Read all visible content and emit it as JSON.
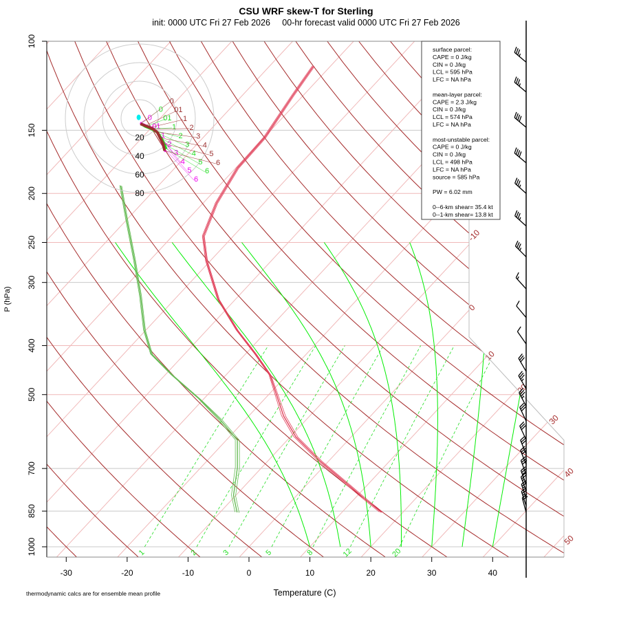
{
  "chart_data": {
    "type": "line",
    "subtype": "skew-T log-P",
    "title": "CSU WRF skew-T for Sterling",
    "subtitle": "init: 0000 UTC Fri 27 Feb 2026     00-hr forecast valid 0000 UTC Fri 27 Feb 2026",
    "xlabel": "Temperature (C)",
    "ylabel": "P (hPa)",
    "footnote": "thermodynamic calcs are for ensemble mean profile",
    "y_scale": "log",
    "ylim": [
      1000,
      100
    ],
    "xlim_at_1000hPa": [
      -33,
      52
    ],
    "x_ticks": [
      "-30",
      "-20",
      "-10",
      "0",
      "10",
      "20",
      "30",
      "40"
    ],
    "x_tick_values": [
      -30,
      -20,
      -10,
      0,
      10,
      20,
      30,
      40
    ],
    "y_ticks": [
      "100",
      "150",
      "200",
      "250",
      "300",
      "400",
      "500",
      "700",
      "850",
      "1000"
    ],
    "y_tick_values": [
      100,
      150,
      200,
      250,
      300,
      400,
      500,
      700,
      850,
      1000
    ],
    "isotherm_labels": [
      "-10",
      "0",
      "10",
      "20",
      "30",
      "40",
      "50"
    ],
    "isotherm_label_values": [
      -10,
      0,
      10,
      20,
      30,
      40,
      50
    ],
    "mixing_ratio_labels": [
      "1",
      "2",
      "3",
      "5",
      "8",
      "12",
      "20"
    ],
    "mixing_ratio_values": [
      1,
      2,
      3,
      5,
      8,
      12,
      20
    ],
    "moist_adiabat_start_temps_1000hPa": [
      10,
      15,
      20,
      25,
      30,
      35,
      40
    ],
    "colors": {
      "temperature": "#e0405a",
      "dewpoint": "#66bb55",
      "dry_adiabat": "#a52a2a",
      "isotherm": "#f0b8b8",
      "moist_adiabat": "#00ee00",
      "mixing_ratio": "#22dd22",
      "isobar": "#c8c8c8",
      "hodo_member_a": "#ee00ee",
      "hodo_member_b": "#22dd22",
      "hodo_mean": "#9b3030",
      "hodo_storm": "#00eeee"
    },
    "series": [
      {
        "name": "temperature",
        "p": [
          112,
          128,
          155,
          178,
          209,
          243,
          272,
          324,
          373,
          416,
          457,
          551,
          606,
          676,
          742,
          803,
          855
        ],
        "t": [
          -62.8,
          -61.7,
          -59.9,
          -59.7,
          -57.8,
          -54.9,
          -50.6,
          -42.8,
          -35.0,
          -28.3,
          -22.8,
          -14.3,
          -9.1,
          -1.5,
          5.6,
          11.6,
          16.5
        ]
      },
      {
        "name": "dewpoint",
        "p": [
          193,
          226,
          272,
          319,
          373,
          416,
          457,
          510,
          560,
          615,
          697,
          791,
          855
        ],
        "t": [
          -76.2,
          -69.9,
          -62.4,
          -56.1,
          -50.2,
          -45.4,
          -38.9,
          -30.7,
          -24.2,
          -18.2,
          -14.0,
          -10.4,
          -7.2
        ]
      }
    ],
    "wind_barbs": {
      "p": [
        110,
        126,
        148,
        174,
        200,
        232,
        267,
        309,
        352,
        397,
        450,
        487,
        527,
        564,
        614,
        656,
        687,
        720,
        754,
        776,
        803,
        830,
        855
      ],
      "dir": [
        310,
        310,
        310,
        310,
        312,
        312,
        315,
        318,
        320,
        325,
        330,
        330,
        332,
        335,
        335,
        338,
        338,
        340,
        340,
        340,
        342,
        342,
        345
      ],
      "spd_kt": [
        35,
        35,
        40,
        40,
        35,
        35,
        35,
        15,
        10,
        10,
        30,
        35,
        35,
        30,
        30,
        30,
        30,
        30,
        25,
        25,
        25,
        25,
        20
      ]
    },
    "hodograph": {
      "ring_labels": [
        "20",
        "40",
        "60",
        "80"
      ],
      "ring_values_kt": [
        20,
        40,
        60,
        80
      ],
      "height_labels": [
        "0",
        "01",
        "1",
        "2",
        "3",
        "4",
        "5",
        "6"
      ],
      "traces": [
        {
          "name": "member-a",
          "u_kt": [
            0.5,
            5,
            10,
            14,
            18,
            22,
            24,
            26,
            28
          ],
          "v_kt": [
            -5,
            -7,
            -9,
            -11,
            -14,
            -20,
            -26,
            -32,
            -36
          ]
        },
        {
          "name": "member-b",
          "u_kt": [
            1,
            6,
            11,
            15,
            20,
            24,
            27,
            29
          ],
          "v_kt": [
            -6,
            -9,
            -11,
            -13,
            -16,
            -22,
            -28,
            -33
          ]
        },
        {
          "name": "mean",
          "u_kt": [
            1,
            6,
            11,
            15,
            19,
            22,
            25,
            27
          ],
          "v_kt": [
            -6,
            -8,
            -10,
            -12,
            -15,
            -21,
            -27,
            -35
          ]
        }
      ],
      "storm_motion_uv_kt": [
        -1,
        1
      ]
    },
    "info_box": [
      "surface parcel:",
      "CAPE = 0 J/kg",
      "CIN = 0 J/kg",
      "LCL = 595 hPa",
      "LFC = NA hPa",
      "",
      "mean-layer parcel:",
      "CAPE = 2.3 J/kg",
      "CIN = 0 J/kg",
      "LCL = 574 hPa",
      "LFC = NA hPa",
      "",
      "most-unstable parcel:",
      "CAPE = 0 J/kg",
      "CIN = 0 J/kg",
      "LCL = 498 hPa",
      "LFC = NA hPa",
      "source = 585 hPa",
      "",
      "PW =  6.02 mm",
      "",
      "0--6-km shear= 35.4 kt",
      "0--1-km shear= 13.8 kt"
    ]
  }
}
